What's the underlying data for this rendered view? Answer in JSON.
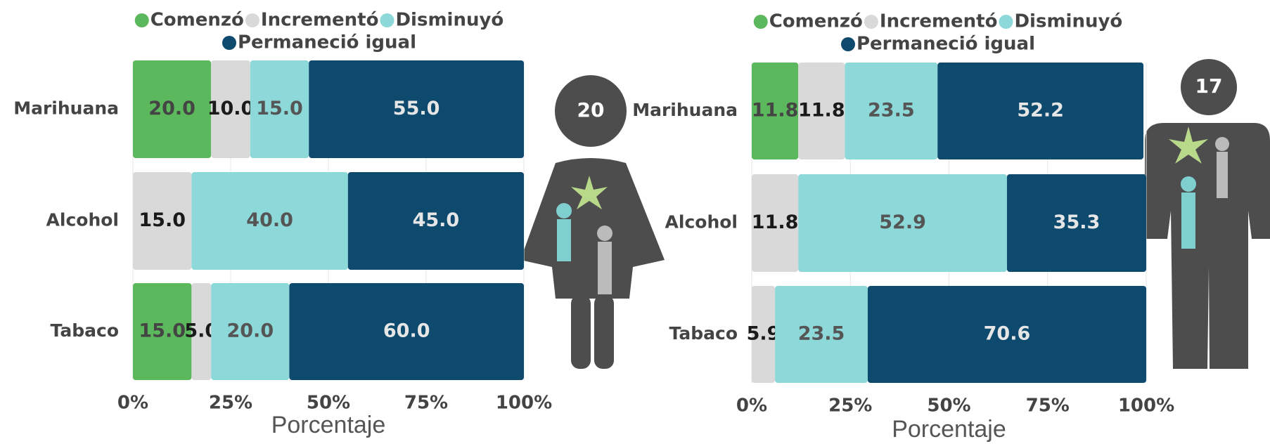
{
  "chart_data": [
    {
      "type": "stacked-bar-horizontal",
      "badge": "20",
      "categories": [
        "Marihuana",
        "Alcohol",
        "Tabaco"
      ],
      "series": [
        {
          "name": "Comenzó",
          "color": "#5cb85c",
          "values": [
            20,
            null,
            15
          ],
          "value_labels": [
            "20.0",
            null,
            "15.0"
          ]
        },
        {
          "name": "Incrementó",
          "color": "#d9d9d9",
          "values": [
            10,
            15,
            5
          ],
          "value_labels": [
            "10.0",
            "15.0",
            "5.0"
          ]
        },
        {
          "name": "Disminuyó",
          "color": "#8dd8d8",
          "values": [
            15,
            40,
            20
          ],
          "value_labels": [
            "15.0",
            "40.0",
            "20.0"
          ]
        },
        {
          "name": "Permaneció igual",
          "color": "#0d4a6e",
          "values": [
            55,
            45,
            60
          ],
          "value_labels": [
            "55.0",
            "45.0",
            "60.0"
          ]
        }
      ],
      "xlim": [
        0,
        100
      ],
      "xticks": [
        {
          "value": 0,
          "label": "0%"
        },
        {
          "value": 25,
          "label": "25%"
        },
        {
          "value": 50,
          "label": "50%"
        },
        {
          "value": 75,
          "label": "75%"
        },
        {
          "value": 100,
          "label": "100%"
        }
      ],
      "xlabel": "Porcentaje"
    },
    {
      "type": "stacked-bar-horizontal",
      "badge": "17",
      "categories": [
        "Marihuana",
        "Alcohol",
        "Tabaco"
      ],
      "series": [
        {
          "name": "Comenzó",
          "color": "#5cb85c",
          "values": [
            11.8,
            null,
            null
          ]
        },
        {
          "name": "Incrementó",
          "color": "#d9d9d9",
          "values": [
            11.8,
            11.8,
            5.9
          ]
        },
        {
          "name": "Disminuyó",
          "color": "#8dd8d8",
          "values": [
            23.5,
            52.9,
            23.5
          ]
        },
        {
          "name": "Permaneció igual",
          "color": "#0d4a6e",
          "values": [
            52.2,
            35.3,
            70.6
          ]
        }
      ],
      "xlim": [
        0,
        100
      ],
      "xticks": [
        {
          "value": 0,
          "label": "0%"
        },
        {
          "value": 25,
          "label": "25%"
        },
        {
          "value": 50,
          "label": "50%"
        },
        {
          "value": 75,
          "label": "75%"
        },
        {
          "value": 100,
          "label": "100%"
        }
      ],
      "xlabel": "Porcentaje"
    }
  ]
}
